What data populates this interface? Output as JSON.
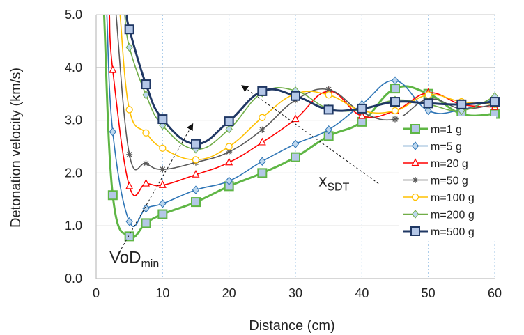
{
  "chart_data": {
    "type": "line",
    "xlabel": "Distance (cm)",
    "ylabel": "Detonation velocity (km/s)",
    "xlim": [
      0,
      60
    ],
    "ylim": [
      0,
      5
    ],
    "xticks": [
      "0",
      "10",
      "20",
      "30",
      "40",
      "50",
      "60"
    ],
    "yticks": [
      "0.0",
      "1.0",
      "2.0",
      "3.0",
      "4.0",
      "5.0"
    ],
    "grid": {
      "horizontal": "solid",
      "vertical": "dashed"
    },
    "legend_position": "right",
    "series": [
      {
        "name": "m=1 g",
        "color": "#5FB645",
        "marker": "square",
        "marker_every": 1,
        "x": [
          1.2,
          2.5,
          5,
          7.5,
          10,
          15,
          20,
          25,
          30,
          35,
          40,
          45,
          50,
          55,
          60
        ],
        "y": [
          5.0,
          1.58,
          0.8,
          1.05,
          1.22,
          1.45,
          1.75,
          2.0,
          2.3,
          2.7,
          2.97,
          3.6,
          3.5,
          3.12,
          3.12
        ]
      },
      {
        "name": "m=5 g",
        "color": "#2E75B6",
        "marker": "diamond",
        "marker_every": 1,
        "x": [
          1.6,
          2.5,
          5,
          7.5,
          10,
          15,
          20,
          25,
          30,
          35,
          40,
          45,
          50,
          55,
          60
        ],
        "y": [
          5.0,
          2.78,
          1.08,
          1.33,
          1.42,
          1.68,
          1.85,
          2.22,
          2.55,
          2.82,
          3.3,
          3.75,
          3.18,
          3.2,
          3.4
        ]
      },
      {
        "name": "m=20 g",
        "color": "#FF0000",
        "marker": "triangle",
        "marker_every": 1,
        "x": [
          2.0,
          2.5,
          5,
          7.5,
          10,
          15,
          20,
          25,
          30,
          35,
          40,
          45,
          50,
          55,
          60
        ],
        "y": [
          5.0,
          3.95,
          1.75,
          1.8,
          1.77,
          1.97,
          2.2,
          2.58,
          3.02,
          3.55,
          3.08,
          3.18,
          3.52,
          3.3,
          3.25
        ]
      },
      {
        "name": "m=50 g",
        "color": "#595959",
        "marker": "star",
        "marker_every": 1,
        "x": [
          3.0,
          5,
          7.5,
          10,
          15,
          20,
          25,
          30,
          35,
          40,
          45,
          50,
          55,
          60
        ],
        "y": [
          5.0,
          2.35,
          2.18,
          2.07,
          2.2,
          2.4,
          2.82,
          3.38,
          3.58,
          3.15,
          3.02,
          3.4,
          3.22,
          3.3
        ]
      },
      {
        "name": "m=100 g",
        "color": "#FFC000",
        "marker": "circle",
        "marker_every": 1,
        "x": [
          3.6,
          5,
          7.5,
          10,
          15,
          20,
          25,
          30,
          35,
          40,
          45,
          50,
          55,
          60
        ],
        "y": [
          5.0,
          3.2,
          2.76,
          2.47,
          2.25,
          2.5,
          3.05,
          3.5,
          3.48,
          3.18,
          3.18,
          3.48,
          3.35,
          3.3
        ]
      },
      {
        "name": "m=200 g",
        "color": "#70AD47",
        "marker": "diamond",
        "marker_every": 1,
        "x": [
          4.3,
          5,
          7.5,
          10,
          15,
          20,
          25,
          30,
          35,
          40,
          45,
          50,
          55,
          60
        ],
        "y": [
          5.0,
          4.38,
          3.48,
          2.9,
          2.45,
          2.83,
          3.52,
          3.56,
          3.22,
          3.2,
          3.38,
          3.3,
          3.18,
          3.45
        ]
      },
      {
        "name": "m=500 g",
        "color": "#203864",
        "marker": "square",
        "marker_every": 1,
        "x": [
          4.6,
          5,
          7.5,
          10,
          15,
          20,
          25,
          30,
          35,
          40,
          45,
          50,
          55,
          60
        ],
        "y": [
          5.0,
          4.72,
          3.68,
          3.02,
          2.55,
          2.98,
          3.55,
          3.46,
          3.2,
          3.22,
          3.35,
          3.32,
          3.3,
          3.35
        ]
      }
    ],
    "annotations": [
      {
        "id": "vod",
        "base": "VoD",
        "sub": "min",
        "text_at": [
          2.0,
          0.3
        ],
        "arrow_from": [
          3.5,
          0.5
        ],
        "arrow_to": [
          14.5,
          2.92
        ]
      },
      {
        "id": "xsdt",
        "base": "x",
        "sub": "SDT",
        "text_at": [
          33.5,
          1.75
        ],
        "arrow_from": [
          42.5,
          1.8
        ],
        "arrow_to": [
          22.0,
          3.65
        ]
      }
    ]
  }
}
